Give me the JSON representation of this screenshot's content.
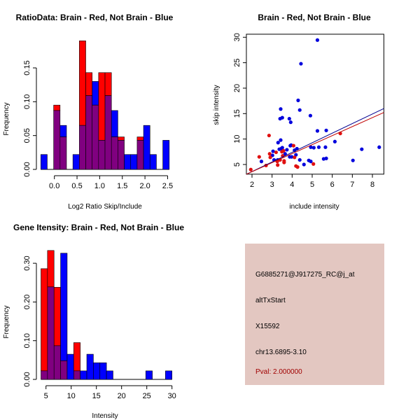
{
  "colors": {
    "red": "#ff0000",
    "blue": "#0000ff",
    "overlap": "#800080",
    "panel_bg": "#e3c7c1",
    "pval": "#a00000"
  },
  "chart_data": [
    {
      "type": "bar",
      "title": "RatioData: Brain - Red, Not Brain - Blue",
      "xlabel": "Log2 Ratio Skip/Include",
      "ylabel": "Frequency",
      "bin_start": -0.3,
      "bin_width": 0.1418,
      "xticks": [
        "0.0",
        "0.5",
        "1.0",
        "1.5",
        "2.0",
        "2.5"
      ],
      "xtick_values": [
        0,
        0.5,
        1.0,
        1.5,
        2.0,
        2.5
      ],
      "yticks": [
        "0.00",
        "0.05",
        "0.10",
        "0.15"
      ],
      "ytick_values": [
        0,
        0.05,
        0.1,
        0.15
      ],
      "series": [
        {
          "name": "Brain",
          "color": "red",
          "values": [
            0,
            0,
            0.095,
            0.048,
            0,
            0,
            0.19,
            0.143,
            0.095,
            0.143,
            0.143,
            0.048,
            0.048,
            0,
            0,
            0.048,
            0,
            0,
            0,
            0
          ]
        },
        {
          "name": "Not Brain",
          "color": "blue",
          "values": [
            0.022,
            0,
            0.087,
            0.065,
            0,
            0.022,
            0.065,
            0.109,
            0.13,
            0.043,
            0.109,
            0.087,
            0.043,
            0.022,
            0.022,
            0.043,
            0.065,
            0.022,
            0,
            0.043
          ]
        }
      ]
    },
    {
      "type": "scatter",
      "title": "Brain - Red, Not Brain - Blue",
      "xlabel": "include intensity",
      "ylabel": "skip intensity",
      "xlim": [
        1.72,
        8.57
      ],
      "ylim": [
        3.1,
        30.6
      ],
      "xticks": [
        "2",
        "3",
        "4",
        "5",
        "6",
        "7",
        "8"
      ],
      "xtick_values": [
        2,
        3,
        4,
        5,
        6,
        7,
        8
      ],
      "yticks": [
        "5",
        "10",
        "15",
        "20",
        "25",
        "30"
      ],
      "ytick_values": [
        5,
        10,
        15,
        20,
        25,
        30
      ],
      "series": [
        {
          "name": "Not Brain",
          "color": "blue",
          "fit": {
            "slope": 1.885,
            "intercept": -0.155
          },
          "points": [
            [
              5.26,
              29.45
            ],
            [
              4.44,
              24.8
            ],
            [
              4.3,
              17.6
            ],
            [
              4.38,
              15.7
            ],
            [
              3.43,
              15.9
            ],
            [
              3.4,
              14.0
            ],
            [
              3.51,
              14.2
            ],
            [
              3.86,
              14.0
            ],
            [
              3.93,
              13.3
            ],
            [
              4.91,
              14.6
            ],
            [
              5.26,
              11.6
            ],
            [
              5.7,
              11.7
            ],
            [
              6.13,
              9.5
            ],
            [
              7.47,
              8.0
            ],
            [
              8.34,
              8.4
            ],
            [
              7.03,
              5.8
            ],
            [
              2.47,
              5.6
            ],
            [
              3.02,
              6.8
            ],
            [
              3.05,
              7.6
            ],
            [
              3.1,
              5.9
            ],
            [
              3.3,
              9.3
            ],
            [
              3.36,
              8.0
            ],
            [
              3.43,
              9.8
            ],
            [
              3.45,
              8.1
            ],
            [
              3.51,
              8.3
            ],
            [
              3.65,
              7.1
            ],
            [
              3.74,
              7.9
            ],
            [
              3.91,
              8.7
            ],
            [
              3.95,
              8.8
            ],
            [
              3.88,
              6.5
            ],
            [
              3.98,
              6.5
            ],
            [
              4.19,
              6.9
            ],
            [
              4.12,
              7.8
            ],
            [
              4.24,
              8.1
            ],
            [
              4.38,
              5.9
            ],
            [
              4.59,
              5.0
            ],
            [
              4.83,
              5.8
            ],
            [
              4.93,
              5.6
            ],
            [
              4.93,
              8.4
            ],
            [
              5.08,
              8.3
            ],
            [
              5.33,
              8.4
            ],
            [
              5.66,
              8.4
            ],
            [
              5.57,
              6.1
            ],
            [
              5.7,
              6.2
            ],
            [
              3.28,
              5.9
            ]
          ]
        },
        {
          "name": "Brain",
          "color": "red",
          "fit": {
            "slope": 1.772,
            "intercept": 0.04
          },
          "points": [
            [
              1.94,
              4.0
            ],
            [
              2.36,
              6.5
            ],
            [
              2.7,
              4.8
            ],
            [
              2.85,
              10.7
            ],
            [
              2.88,
              7.1
            ],
            [
              2.91,
              6.4
            ],
            [
              3.2,
              7.4
            ],
            [
              3.26,
              5.6
            ],
            [
              3.28,
              4.9
            ],
            [
              3.4,
              5.9
            ],
            [
              3.49,
              7.5
            ],
            [
              3.53,
              6.7
            ],
            [
              3.57,
              7.7
            ],
            [
              3.6,
              5.7
            ],
            [
              3.6,
              5.4
            ],
            [
              4.07,
              8.7
            ],
            [
              4.12,
              6.4
            ],
            [
              4.19,
              4.7
            ],
            [
              4.27,
              4.5
            ],
            [
              5.06,
              5.1
            ],
            [
              6.4,
              11.1
            ]
          ]
        }
      ]
    },
    {
      "type": "bar",
      "title": "Gene Itensity: Brain - Red, Not Brain - Blue",
      "xlabel": "Intensity",
      "ylabel": "Frequency",
      "bin_start": 4,
      "bin_width": 1.3,
      "xticks": [
        "5",
        "10",
        "15",
        "20",
        "25",
        "30"
      ],
      "xtick_values": [
        5,
        10,
        15,
        20,
        25,
        30
      ],
      "yticks": [
        "0.00",
        "0.10",
        "0.20",
        "0.30"
      ],
      "ytick_values": [
        0,
        0.1,
        0.2,
        0.3
      ],
      "series": [
        {
          "name": "Brain",
          "color": "red",
          "values": [
            0.286,
            0.333,
            0.238,
            0.048,
            0,
            0.095,
            0,
            0,
            0,
            0,
            0,
            0,
            0,
            0,
            0,
            0,
            0,
            0,
            0,
            0
          ]
        },
        {
          "name": "Not Brain",
          "color": "blue",
          "values": [
            0.022,
            0.239,
            0.087,
            0.326,
            0.065,
            0.022,
            0.022,
            0.065,
            0.043,
            0.043,
            0.022,
            0,
            0,
            0,
            0,
            0,
            0.022,
            0,
            0,
            0.022
          ]
        }
      ]
    }
  ],
  "info_panel": {
    "probe_id": "G6885271@J917275_RC@j_at",
    "event_type": "altTxStart",
    "accession": "X15592",
    "location": "chr13.6895-3.10",
    "pval": "Pval: 2.000000"
  }
}
